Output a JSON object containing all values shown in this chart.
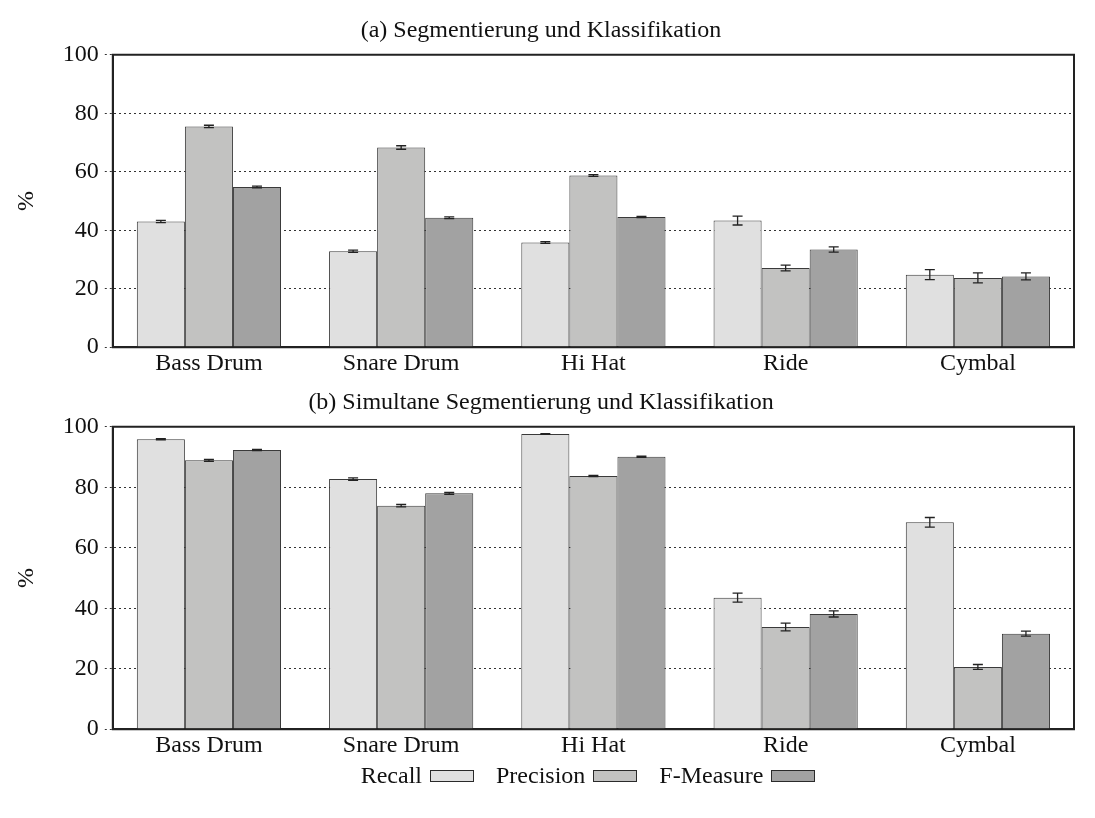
{
  "chart_data": [
    {
      "type": "bar",
      "title": "(a) Segmentierung und Klassifikation",
      "ylabel": "%",
      "categories": [
        "Bass Drum",
        "Snare Drum",
        "Hi Hat",
        "Ride",
        "Cymbal"
      ],
      "ylim": [
        0,
        100
      ],
      "yticks": [
        0,
        20,
        40,
        60,
        80,
        100
      ],
      "grid": "y",
      "legend": false,
      "series": [
        {
          "color": "#e0e0e0",
          "values": [
            43.0,
            32.8,
            35.8,
            43.3,
            24.8
          ],
          "errors": [
            0.4,
            0.4,
            0.3,
            1.5,
            1.7
          ]
        },
        {
          "color": "#c2c2c1",
          "values": [
            75.5,
            68.3,
            58.7,
            27.1,
            23.7
          ],
          "errors": [
            0.4,
            0.6,
            0.3,
            1.0,
            1.7
          ]
        },
        {
          "color": "#a2a2a2",
          "values": [
            54.8,
            44.3,
            44.5,
            33.4,
            24.2
          ],
          "errors": [
            0.3,
            0.3,
            0.2,
            0.9,
            1.2
          ]
        }
      ]
    },
    {
      "type": "bar",
      "title": "(b) Simultane Segmentierung und Klassifikation",
      "ylabel": "%",
      "categories": [
        "Bass Drum",
        "Snare Drum",
        "Hi Hat",
        "Ride",
        "Cymbal"
      ],
      "ylim": [
        0,
        100
      ],
      "yticks": [
        0,
        20,
        40,
        60,
        80,
        100
      ],
      "grid": "y",
      "legend": "bottom",
      "series": [
        {
          "name": "Recall",
          "color": "#e0e0e0",
          "values": [
            95.9,
            82.7,
            97.6,
            43.5,
            68.4
          ],
          "errors": [
            0.2,
            0.4,
            0.1,
            1.5,
            1.6
          ]
        },
        {
          "name": "Precision",
          "color": "#c2c2c1",
          "values": [
            88.9,
            73.9,
            83.7,
            33.8,
            20.6
          ],
          "errors": [
            0.3,
            0.4,
            0.2,
            1.3,
            0.8
          ]
        },
        {
          "name": "F-Measure",
          "color": "#a2a2a2",
          "values": [
            92.3,
            78.0,
            90.1,
            38.1,
            31.6
          ],
          "errors": [
            0.2,
            0.3,
            0.2,
            1.0,
            0.8
          ]
        }
      ]
    }
  ]
}
